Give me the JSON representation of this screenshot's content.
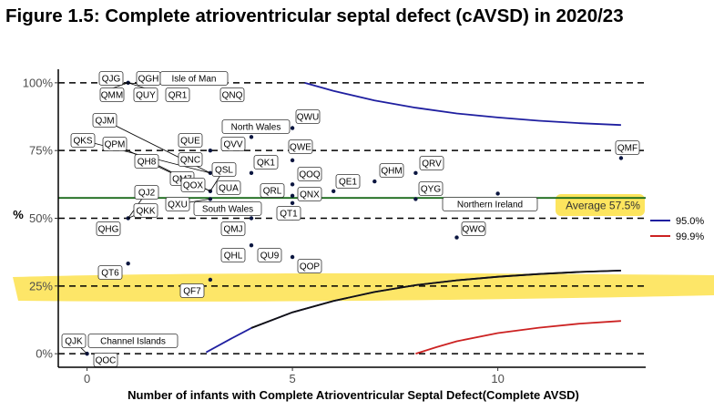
{
  "title": "Figure 1.5: Complete atrioventricular septal defect (cAVSD) in 2020/23",
  "chart_data": {
    "type": "scatter",
    "title": "Figure 1.5: Complete atrioventricular septal defect (cAVSD) in 2020/23",
    "xlabel": "Number of infants with Complete Atrioventricular Septal Defect(Complete AVSD)",
    "ylabel": "%",
    "xlim": [
      -0.7,
      13.6
    ],
    "ylim": [
      -5,
      105
    ],
    "x_ticks": [
      0,
      5,
      10
    ],
    "x_tick_labels": [
      "0",
      "5",
      "10"
    ],
    "y_ticks": [
      0,
      25,
      50,
      75,
      100
    ],
    "y_tick_labels": [
      "0%",
      "25%",
      "50%",
      "75%",
      "100%"
    ],
    "reference_lines_y": [
      0,
      25,
      50,
      75,
      100
    ],
    "average": {
      "value": 57.5,
      "label": "Average 57.5%",
      "color": "#1b6b1b"
    },
    "legend": {
      "placement": "right",
      "items": [
        {
          "label": "95.0%",
          "color": "#1f1fa0"
        },
        {
          "label": "99.9%",
          "color": "#cc2222"
        }
      ]
    },
    "funnel_limits": [
      {
        "name": "95.0%",
        "color": "#1f1fa0",
        "upper": [
          [
            5.3,
            100
          ],
          [
            6,
            97
          ],
          [
            7,
            93.5
          ],
          [
            8,
            90.8
          ],
          [
            9,
            88.7
          ],
          [
            10,
            87.2
          ],
          [
            11,
            86.0
          ],
          [
            12,
            85.1
          ],
          [
            13,
            84.4
          ]
        ],
        "lower": [
          [
            2.9,
            0.5
          ],
          [
            3.5,
            5.5
          ],
          [
            4,
            9.5
          ],
          [
            5,
            15.3
          ],
          [
            6,
            19.5
          ],
          [
            7,
            22.8
          ],
          [
            8,
            25.3
          ],
          [
            9,
            27.1
          ],
          [
            10,
            28.4
          ],
          [
            11,
            29.4
          ],
          [
            12,
            30.2
          ],
          [
            13,
            30.7
          ]
        ]
      },
      {
        "name": "99.9%",
        "color": "#cc2222",
        "lower": [
          [
            8,
            0
          ],
          [
            8.5,
            2.4
          ],
          [
            9,
            4.6
          ],
          [
            10,
            7.6
          ],
          [
            11,
            9.6
          ],
          [
            12,
            11.1
          ],
          [
            13,
            12.1
          ]
        ]
      }
    ],
    "points": [
      {
        "label": "QJG",
        "x": 1,
        "y": 100
      },
      {
        "label": "QGH",
        "x": 1,
        "y": 100
      },
      {
        "label": "Isle of Man",
        "x": 1,
        "y": 100
      },
      {
        "label": "QMM",
        "x": 1,
        "y": 100
      },
      {
        "label": "QUY",
        "x": 1,
        "y": 100
      },
      {
        "label": "QR1",
        "x": 1,
        "y": 100
      },
      {
        "label": "QNQ",
        "x": 1,
        "y": 100
      },
      {
        "label": "QWU",
        "x": 5,
        "y": 83.3
      },
      {
        "label": "North Wales",
        "x": 4,
        "y": 80
      },
      {
        "label": "QJM",
        "x": 3,
        "y": 66.7
      },
      {
        "label": "QKS",
        "x": 3,
        "y": 66.7
      },
      {
        "label": "QPM",
        "x": 3,
        "y": 66.7
      },
      {
        "label": "QH8",
        "x": 3,
        "y": 66.7
      },
      {
        "label": "QUE",
        "x": 3,
        "y": 75
      },
      {
        "label": "QVV",
        "x": 3,
        "y": 75
      },
      {
        "label": "QWE",
        "x": 5,
        "y": 71.4
      },
      {
        "label": "QMF",
        "x": 13,
        "y": 72.2
      },
      {
        "label": "QNC",
        "x": 3,
        "y": 66.7
      },
      {
        "label": "QK1",
        "x": 4,
        "y": 66.7
      },
      {
        "label": "QHM",
        "x": 7,
        "y": 63.6
      },
      {
        "label": "QRV",
        "x": 8,
        "y": 66.7
      },
      {
        "label": "QM7",
        "x": 3,
        "y": 60
      },
      {
        "label": "QOQ",
        "x": 5,
        "y": 62.5
      },
      {
        "label": "QSL",
        "x": 3,
        "y": 60
      },
      {
        "label": "QE1",
        "x": 6,
        "y": 60
      },
      {
        "label": "QOX",
        "x": 3,
        "y": 60
      },
      {
        "label": "QUA",
        "x": 3,
        "y": 60
      },
      {
        "label": "QRL",
        "x": 5,
        "y": 58.3
      },
      {
        "label": "QYG",
        "x": 8,
        "y": 57.1
      },
      {
        "label": "QJ2",
        "x": 1,
        "y": 50
      },
      {
        "label": "QNX",
        "x": 5,
        "y": 55.6
      },
      {
        "label": "Northern Ireland",
        "x": 10,
        "y": 59.1
      },
      {
        "label": "QXU",
        "x": 3,
        "y": 57.1
      },
      {
        "label": "South Wales",
        "x": 4,
        "y": 50
      },
      {
        "label": "QKK",
        "x": 1,
        "y": 50
      },
      {
        "label": "QT1",
        "x": 5,
        "y": 50
      },
      {
        "label": "QHG",
        "x": 1,
        "y": 50
      },
      {
        "label": "QMJ",
        "x": 4,
        "y": 50
      },
      {
        "label": "QWO",
        "x": 9,
        "y": 42.9
      },
      {
        "label": "QHL",
        "x": 4,
        "y": 40
      },
      {
        "label": "QU9",
        "x": 4,
        "y": 40
      },
      {
        "label": "QOP",
        "x": 5,
        "y": 35.7
      },
      {
        "label": "QT6",
        "x": 1,
        "y": 33.3
      },
      {
        "label": "QF7",
        "x": 3,
        "y": 27.3
      },
      {
        "label": "QJK",
        "x": 0,
        "y": 0
      },
      {
        "label": "Channel Islands",
        "x": 0,
        "y": 0
      },
      {
        "label": "QOC",
        "x": 0,
        "y": 0
      }
    ]
  }
}
